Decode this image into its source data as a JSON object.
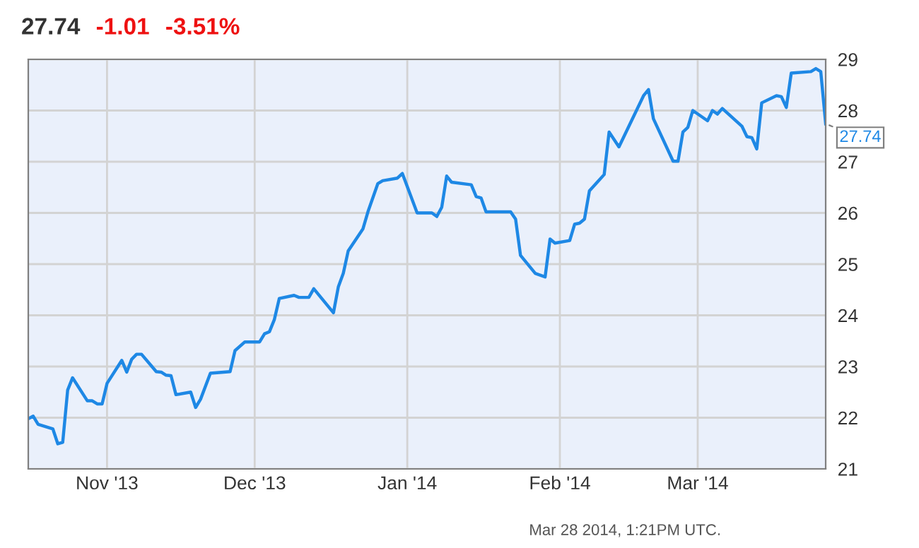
{
  "chart_data": {
    "type": "line",
    "title": "27.74",
    "annotations": [
      "-1.01",
      "-3.51%",
      "Mar 28 2014, 1:21PM UTC.",
      {
        "text": "27.74",
        "x": "2014-03-27",
        "y": 27.74
      }
    ],
    "x": [
      "2013-10-16",
      "2013-10-17",
      "2013-10-18",
      "2013-10-21",
      "2013-10-22",
      "2013-10-23",
      "2013-10-24",
      "2013-10-25",
      "2013-10-28",
      "2013-10-29",
      "2013-10-30",
      "2013-10-31",
      "2013-11-01",
      "2013-11-04",
      "2013-11-05",
      "2013-11-06",
      "2013-11-07",
      "2013-11-08",
      "2013-11-11",
      "2013-11-12",
      "2013-11-13",
      "2013-11-14",
      "2013-11-15",
      "2013-11-18",
      "2013-11-19",
      "2013-11-20",
      "2013-11-22",
      "2013-11-26",
      "2013-11-27",
      "2013-11-29",
      "2013-12-02",
      "2013-12-03",
      "2013-12-04",
      "2013-12-05",
      "2013-12-06",
      "2013-12-09",
      "2013-12-10",
      "2013-12-12",
      "2013-12-13",
      "2013-12-17",
      "2013-12-18",
      "2013-12-19",
      "2013-12-20",
      "2013-12-23",
      "2013-12-24",
      "2013-12-26",
      "2013-12-27",
      "2013-12-30",
      "2013-12-31",
      "2014-01-03",
      "2014-01-06",
      "2014-01-07",
      "2014-01-08",
      "2014-01-09",
      "2014-01-10",
      "2014-01-14",
      "2014-01-15",
      "2014-01-16",
      "2014-01-17",
      "2014-01-22",
      "2014-01-23",
      "2014-01-24",
      "2014-01-27",
      "2014-01-29",
      "2014-01-30",
      "2014-01-31",
      "2014-02-03",
      "2014-02-04",
      "2014-02-05",
      "2014-02-06",
      "2014-02-07",
      "2014-02-10",
      "2014-02-11",
      "2014-02-13",
      "2014-02-18",
      "2014-02-19",
      "2014-02-20",
      "2014-02-24",
      "2014-02-25",
      "2014-02-26",
      "2014-02-27",
      "2014-02-28",
      "2014-03-03",
      "2014-03-04",
      "2014-03-05",
      "2014-03-06",
      "2014-03-10",
      "2014-03-11",
      "2014-03-12",
      "2014-03-13",
      "2014-03-14",
      "2014-03-17",
      "2014-03-18",
      "2014-03-19",
      "2014-03-20",
      "2014-03-24",
      "2014-03-25",
      "2014-03-26",
      "2014-03-27"
    ],
    "series": [
      {
        "color": "#1e88e5",
        "values": [
          21.98,
          22.03,
          21.87,
          21.78,
          21.49,
          21.52,
          22.54,
          22.78,
          22.33,
          22.33,
          22.27,
          22.27,
          22.67,
          23.12,
          22.89,
          23.14,
          23.24,
          23.24,
          22.9,
          22.89,
          22.83,
          22.82,
          22.45,
          22.5,
          22.2,
          22.36,
          22.87,
          22.9,
          23.31,
          23.48,
          23.48,
          23.64,
          23.68,
          23.92,
          24.33,
          24.39,
          24.35,
          24.35,
          24.52,
          24.05,
          24.56,
          24.82,
          25.26,
          25.69,
          26.02,
          26.57,
          26.63,
          26.68,
          26.77,
          26.0,
          26.0,
          25.93,
          26.11,
          26.72,
          26.6,
          26.55,
          26.32,
          26.29,
          26.02,
          26.02,
          25.88,
          25.17,
          24.82,
          24.75,
          25.49,
          25.41,
          25.46,
          25.78,
          25.8,
          25.88,
          26.43,
          26.75,
          27.58,
          27.29,
          28.29,
          28.41,
          27.84,
          27.01,
          27.01,
          27.58,
          27.67,
          28.0,
          27.8,
          28.0,
          27.93,
          28.04,
          27.69,
          27.49,
          27.47,
          27.25,
          28.15,
          28.29,
          28.27,
          28.06,
          28.73,
          28.76,
          28.82,
          28.76,
          27.74
        ]
      }
    ],
    "xlim": [
      "2013-10-16",
      "2014-03-27"
    ],
    "xticks": [
      {
        "value": "2013-11-01",
        "label": "Nov '13"
      },
      {
        "value": "2013-12-01",
        "label": "Dec '13"
      },
      {
        "value": "2014-01-01",
        "label": "Jan '14"
      },
      {
        "value": "2014-02-01",
        "label": "Feb '14"
      },
      {
        "value": "2014-03-01",
        "label": "Mar '14"
      }
    ],
    "ylim": [
      21,
      29
    ],
    "yticks": [
      21,
      22,
      23,
      24,
      25,
      26,
      27,
      28,
      29
    ],
    "grid": true,
    "legend": false,
    "marker": "none",
    "line_style": "solid"
  }
}
